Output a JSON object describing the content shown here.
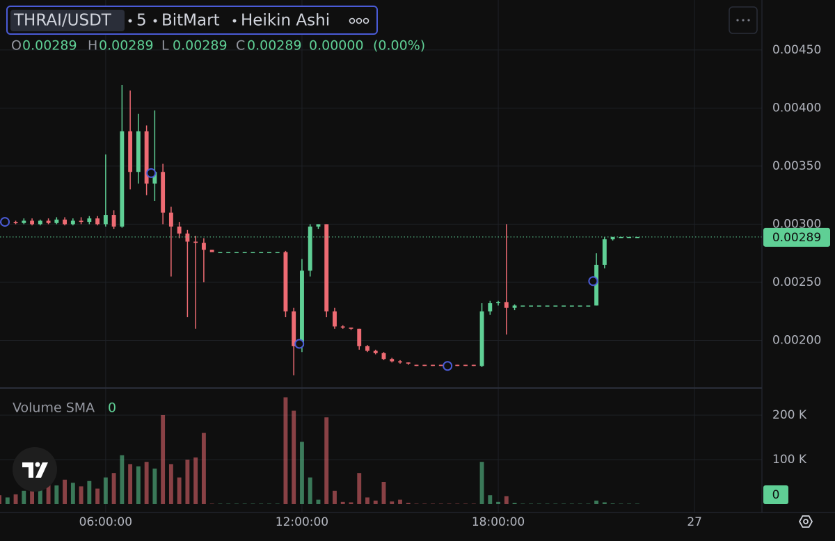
{
  "chart_data": {
    "type": "candlestick",
    "symbol": "THRAI/USDT",
    "interval": "5",
    "exchange": "BitMart",
    "chart_style": "Heikin Ashi",
    "ohlc": [
      {
        "key": "O",
        "value": 0.00289
      },
      {
        "key": "H",
        "value": 0.00289
      },
      {
        "key": "L",
        "value": 0.00289
      },
      {
        "key": "C",
        "value": 0.00289
      }
    ],
    "change": {
      "value": 0,
      "label": "0.00000"
    },
    "change_percent": "(0.00%)",
    "up_color": "#5fcf95",
    "down_color": "#ee6b73",
    "grid": true,
    "xlim": [
      2.77,
      26.06
    ],
    "xticks": [
      {
        "value": 6,
        "label": "06:00:00"
      },
      {
        "value": 12,
        "label": "12:00:00"
      },
      {
        "value": 18,
        "label": "18:00:00"
      },
      {
        "value": 24,
        "label": "27"
      }
    ],
    "ylim": [
      0.00159,
      0.00493
    ],
    "yticks": [
      {
        "value": 0.002,
        "label": "0.00200"
      },
      {
        "value": 0.0025,
        "label": "0.00250"
      },
      {
        "value": 0.003,
        "label": "0.00300"
      },
      {
        "value": 0.0035,
        "label": "0.00350"
      },
      {
        "value": 0.004,
        "label": "0.00400"
      },
      {
        "value": 0.0045,
        "label": "0.00450"
      }
    ],
    "last_price": 0.00289,
    "x": [
      2.75,
      3,
      3.25,
      3.5,
      3.75,
      4,
      4.25,
      4.5,
      4.75,
      5,
      5.25,
      5.5,
      5.75,
      6,
      6.25,
      6.5,
      6.75,
      7,
      7.25,
      7.5,
      7.75,
      8,
      8.25,
      8.5,
      8.75,
      9,
      9.25,
      9.5,
      9.75,
      10,
      10.25,
      10.5,
      10.75,
      11,
      11.25,
      11.5,
      11.75,
      12,
      12.25,
      12.5,
      12.75,
      13,
      13.25,
      13.5,
      13.75,
      14,
      14.25,
      14.5,
      14.75,
      15,
      15.25,
      15.5,
      15.75,
      16,
      16.25,
      16.5,
      16.75,
      17,
      17.25,
      17.5,
      17.75,
      18,
      18.25,
      18.5,
      18.75,
      19,
      19.25,
      19.5,
      19.75,
      20,
      20.25,
      20.5,
      20.75,
      21,
      21.25,
      21.5,
      21.75,
      22,
      22.25
    ],
    "open": [
      0.00302,
      0.00301,
      0.00302,
      0.00301,
      0.00303,
      0.003,
      0.00303,
      0.00301,
      0.00304,
      0.003,
      0.00303,
      0.00302,
      0.00305,
      0.003,
      0.00308,
      0.00298,
      0.0038,
      0.00345,
      0.0038,
      0.00335,
      0.00345,
      0.0031,
      0.00298,
      0.00292,
      0.00285,
      0.00284,
      0.00278,
      0.00276,
      0.00276,
      0.00276,
      0.00276,
      0.00276,
      0.00276,
      0.00276,
      0.00276,
      0.00276,
      0.00225,
      0.00195,
      0.0026,
      0.00298,
      0.003,
      0.00225,
      0.00212,
      0.00211,
      0.0021,
      0.00195,
      0.00191,
      0.00189,
      0.00184,
      0.00182,
      0.00181,
      0.00179,
      0.00179,
      0.00179,
      0.00179,
      0.00179,
      0.00179,
      0.00179,
      0.00179,
      0.00178,
      0.00225,
      0.00232,
      0.00233,
      0.00228,
      0.0023,
      0.0023,
      0.0023,
      0.0023,
      0.0023,
      0.0023,
      0.0023,
      0.0023,
      0.0023,
      0.0023,
      0.00265,
      0.00287,
      0.00289,
      0.00289,
      0.00289
    ],
    "high": [
      0.00304,
      0.00303,
      0.00303,
      0.00305,
      0.00305,
      0.00304,
      0.00305,
      0.00306,
      0.00306,
      0.00305,
      0.00306,
      0.00307,
      0.00307,
      0.0036,
      0.00312,
      0.0042,
      0.00415,
      0.00395,
      0.00385,
      0.00398,
      0.00352,
      0.00315,
      0.00302,
      0.00295,
      0.0029,
      0.00288,
      0.00278,
      0.00276,
      0.00276,
      0.00276,
      0.00276,
      0.00276,
      0.00276,
      0.00276,
      0.00276,
      0.00277,
      0.00228,
      0.0027,
      0.003,
      0.003,
      0.003,
      0.00228,
      0.00213,
      0.00211,
      0.0021,
      0.00196,
      0.00192,
      0.0019,
      0.00185,
      0.00183,
      0.00181,
      0.00179,
      0.00179,
      0.00179,
      0.00179,
      0.00179,
      0.00179,
      0.00179,
      0.00179,
      0.00232,
      0.00234,
      0.00234,
      0.003,
      0.00231,
      0.0023,
      0.0023,
      0.0023,
      0.0023,
      0.0023,
      0.0023,
      0.0023,
      0.0023,
      0.0023,
      0.00275,
      0.00289,
      0.00289,
      0.00289,
      0.00289,
      0.00289
    ],
    "low": [
      0.003,
      0.003,
      0.003,
      0.003,
      0.00299,
      0.00299,
      0.003,
      0.003,
      0.00299,
      0.00299,
      0.003,
      0.003,
      0.00299,
      0.00298,
      0.00296,
      0.00297,
      0.0033,
      0.00335,
      0.00325,
      0.0032,
      0.003,
      0.00255,
      0.00288,
      0.0022,
      0.0021,
      0.0025,
      0.00276,
      0.00276,
      0.00276,
      0.00276,
      0.00276,
      0.00276,
      0.00276,
      0.00276,
      0.00276,
      0.0022,
      0.0017,
      0.0019,
      0.00255,
      0.00296,
      0.0022,
      0.0021,
      0.0021,
      0.00209,
      0.00192,
      0.0019,
      0.00188,
      0.00183,
      0.00181,
      0.0018,
      0.00179,
      0.00178,
      0.00178,
      0.00178,
      0.00178,
      0.00178,
      0.00178,
      0.00178,
      0.00178,
      0.00177,
      0.00222,
      0.0023,
      0.00205,
      0.00226,
      0.0023,
      0.0023,
      0.0023,
      0.0023,
      0.0023,
      0.0023,
      0.0023,
      0.0023,
      0.0023,
      0.0023,
      0.00262,
      0.00286,
      0.00289,
      0.00289,
      0.00289
    ],
    "close": [
      0.00301,
      0.00302,
      0.00301,
      0.00303,
      0.003,
      0.00303,
      0.00301,
      0.00304,
      0.003,
      0.00303,
      0.00302,
      0.00305,
      0.003,
      0.00308,
      0.00298,
      0.0038,
      0.00345,
      0.0038,
      0.00335,
      0.00345,
      0.0031,
      0.00298,
      0.00292,
      0.00285,
      0.00284,
      0.00278,
      0.00276,
      0.00276,
      0.00276,
      0.00276,
      0.00276,
      0.00276,
      0.00276,
      0.00276,
      0.00276,
      0.00225,
      0.00195,
      0.0026,
      0.00298,
      0.003,
      0.00225,
      0.00212,
      0.00211,
      0.0021,
      0.00195,
      0.00191,
      0.00189,
      0.00184,
      0.00182,
      0.00181,
      0.0018,
      0.00178,
      0.00178,
      0.00178,
      0.00178,
      0.00178,
      0.00178,
      0.00178,
      0.00178,
      0.00225,
      0.00232,
      0.00233,
      0.00228,
      0.0023,
      0.0023,
      0.0023,
      0.0023,
      0.0023,
      0.0023,
      0.0023,
      0.0023,
      0.0023,
      0.0023,
      0.00265,
      0.00287,
      0.00289,
      0.00289,
      0.00289,
      0.00289
    ],
    "markers": {
      "x": [
        2.92,
        7.39,
        11.92,
        16.45,
        20.9
      ],
      "y": [
        0.00302,
        0.00344,
        0.00197,
        0.00178,
        0.00251
      ]
    },
    "volume": {
      "title": "Volume SMA",
      "value": 0,
      "ylim": [
        0,
        255000
      ],
      "yticks": [
        {
          "value": 100000,
          "label": "100 K"
        },
        {
          "value": 200000,
          "label": "200 K"
        }
      ],
      "values": [
        20000,
        15000,
        22000,
        30000,
        45000,
        38000,
        50000,
        42000,
        55000,
        48000,
        40000,
        52000,
        35000,
        60000,
        70000,
        110000,
        90000,
        85000,
        95000,
        80000,
        200000,
        90000,
        60000,
        100000,
        105000,
        160000,
        1000,
        1000,
        1000,
        1000,
        1000,
        1000,
        1000,
        1000,
        1000,
        240000,
        210000,
        140000,
        60000,
        10000,
        195000,
        30000,
        5000,
        4000,
        70000,
        15000,
        8000,
        50000,
        6000,
        10000,
        3000,
        1000,
        1000,
        1000,
        1000,
        1000,
        1000,
        1000,
        1000,
        95000,
        20000,
        5000,
        18000,
        3000,
        1000,
        1000,
        1000,
        1000,
        1000,
        1000,
        1000,
        1000,
        1000,
        8000,
        4000,
        1500,
        1000,
        1000,
        1000
      ]
    }
  }
}
